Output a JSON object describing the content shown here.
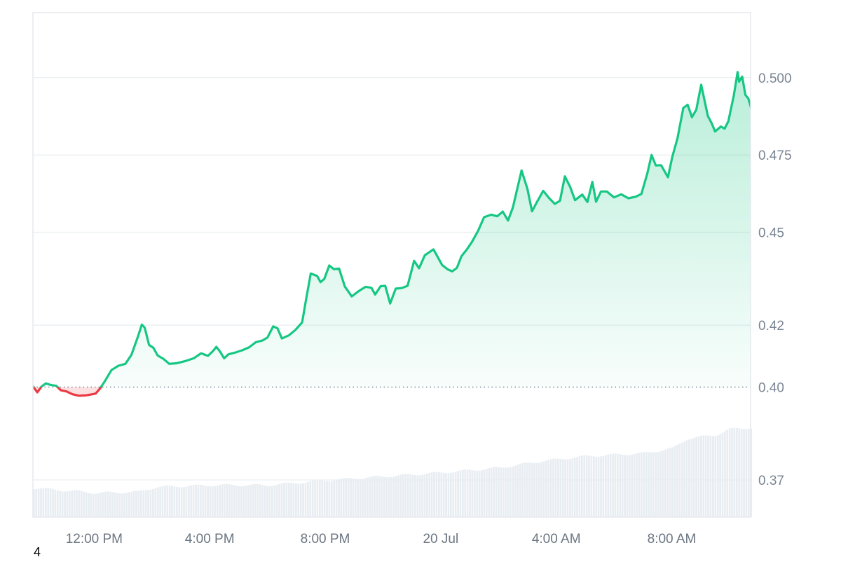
{
  "chart_data": {
    "type": "area",
    "title": "",
    "xlabel": "",
    "ylabel": "",
    "baseline": 0.4,
    "ylim": [
      0.358,
      0.521
    ],
    "y_ticks": [
      0.37,
      0.4,
      0.42,
      0.45,
      0.475,
      0.5
    ],
    "y_tick_labels": [
      "0.37",
      "0.40",
      "0.42",
      "0.45",
      "0.475",
      "0.500"
    ],
    "x_tick_labels": [
      "12:00 PM",
      "4:00 PM",
      "8:00 PM",
      "20 Jul",
      "4:00 AM",
      "8:00 AM"
    ],
    "x_tick_hours": [
      12,
      16,
      20,
      24,
      28,
      32
    ],
    "x_range_hours": [
      9.88,
      34.73
    ],
    "grid": true,
    "legend": "none",
    "colors": {
      "up_line": "#16c784",
      "down_line": "#ea3943",
      "up_fill": "#16c784",
      "down_fill": "#ea3943",
      "volume": "#e8edf2",
      "grid": "#edf0f3",
      "baseline_dots": "#7a8593"
    },
    "price_series": [
      [
        9.88,
        0.4003
      ],
      [
        10.03,
        0.3983
      ],
      [
        10.18,
        0.4002
      ],
      [
        10.33,
        0.4012
      ],
      [
        10.49,
        0.4007
      ],
      [
        10.69,
        0.4004
      ],
      [
        10.84,
        0.399
      ],
      [
        11.04,
        0.3986
      ],
      [
        11.24,
        0.3977
      ],
      [
        11.47,
        0.3972
      ],
      [
        11.69,
        0.3973
      ],
      [
        11.89,
        0.3976
      ],
      [
        12.05,
        0.3979
      ],
      [
        12.2,
        0.3995
      ],
      [
        12.35,
        0.4016
      ],
      [
        12.6,
        0.4055
      ],
      [
        12.84,
        0.4069
      ],
      [
        13.08,
        0.4075
      ],
      [
        13.29,
        0.4104
      ],
      [
        13.5,
        0.4159
      ],
      [
        13.65,
        0.4202
      ],
      [
        13.75,
        0.4192
      ],
      [
        13.9,
        0.4136
      ],
      [
        14.05,
        0.4127
      ],
      [
        14.2,
        0.4102
      ],
      [
        14.4,
        0.4091
      ],
      [
        14.6,
        0.4075
      ],
      [
        14.85,
        0.4077
      ],
      [
        15.15,
        0.4084
      ],
      [
        15.45,
        0.4093
      ],
      [
        15.7,
        0.4109
      ],
      [
        15.94,
        0.4101
      ],
      [
        16.1,
        0.4115
      ],
      [
        16.23,
        0.413
      ],
      [
        16.35,
        0.4116
      ],
      [
        16.5,
        0.4093
      ],
      [
        16.65,
        0.4106
      ],
      [
        16.9,
        0.4112
      ],
      [
        17.13,
        0.4119
      ],
      [
        17.36,
        0.4128
      ],
      [
        17.6,
        0.4145
      ],
      [
        17.84,
        0.4151
      ],
      [
        18.0,
        0.416
      ],
      [
        18.2,
        0.4196
      ],
      [
        18.35,
        0.419
      ],
      [
        18.5,
        0.4157
      ],
      [
        18.74,
        0.4167
      ],
      [
        18.97,
        0.4185
      ],
      [
        19.2,
        0.4209
      ],
      [
        19.34,
        0.4284
      ],
      [
        19.5,
        0.4367
      ],
      [
        19.72,
        0.4359
      ],
      [
        19.84,
        0.4339
      ],
      [
        19.97,
        0.435
      ],
      [
        20.14,
        0.4393
      ],
      [
        20.3,
        0.4381
      ],
      [
        20.48,
        0.4383
      ],
      [
        20.68,
        0.4325
      ],
      [
        20.92,
        0.4293
      ],
      [
        21.16,
        0.431
      ],
      [
        21.4,
        0.4324
      ],
      [
        21.6,
        0.4321
      ],
      [
        21.73,
        0.4299
      ],
      [
        21.92,
        0.4326
      ],
      [
        22.08,
        0.4327
      ],
      [
        22.25,
        0.427
      ],
      [
        22.44,
        0.4318
      ],
      [
        22.65,
        0.432
      ],
      [
        22.85,
        0.4327
      ],
      [
        23.08,
        0.4408
      ],
      [
        23.25,
        0.4384
      ],
      [
        23.45,
        0.4426
      ],
      [
        23.75,
        0.4445
      ],
      [
        24.05,
        0.4394
      ],
      [
        24.25,
        0.438
      ],
      [
        24.4,
        0.4374
      ],
      [
        24.56,
        0.4385
      ],
      [
        24.72,
        0.4423
      ],
      [
        24.9,
        0.4444
      ],
      [
        25.08,
        0.4469
      ],
      [
        25.3,
        0.4506
      ],
      [
        25.5,
        0.4549
      ],
      [
        25.75,
        0.4557
      ],
      [
        25.96,
        0.4552
      ],
      [
        26.15,
        0.4567
      ],
      [
        26.33,
        0.4538
      ],
      [
        26.5,
        0.4581
      ],
      [
        26.8,
        0.47
      ],
      [
        27.0,
        0.4641
      ],
      [
        27.16,
        0.4568
      ],
      [
        27.35,
        0.4601
      ],
      [
        27.55,
        0.4634
      ],
      [
        27.75,
        0.4611
      ],
      [
        27.95,
        0.4592
      ],
      [
        28.13,
        0.4602
      ],
      [
        28.3,
        0.4681
      ],
      [
        28.48,
        0.4647
      ],
      [
        28.65,
        0.4604
      ],
      [
        28.9,
        0.4622
      ],
      [
        29.08,
        0.4598
      ],
      [
        29.25,
        0.4663
      ],
      [
        29.38,
        0.4599
      ],
      [
        29.55,
        0.4632
      ],
      [
        29.75,
        0.4632
      ],
      [
        30.0,
        0.4613
      ],
      [
        30.25,
        0.4623
      ],
      [
        30.5,
        0.461
      ],
      [
        30.75,
        0.4615
      ],
      [
        30.95,
        0.4624
      ],
      [
        31.15,
        0.4689
      ],
      [
        31.3,
        0.475
      ],
      [
        31.45,
        0.4716
      ],
      [
        31.63,
        0.4717
      ],
      [
        31.87,
        0.4678
      ],
      [
        32.02,
        0.4744
      ],
      [
        32.2,
        0.4804
      ],
      [
        32.4,
        0.4902
      ],
      [
        32.55,
        0.4912
      ],
      [
        32.7,
        0.4872
      ],
      [
        32.85,
        0.4896
      ],
      [
        33.02,
        0.4977
      ],
      [
        33.25,
        0.4876
      ],
      [
        33.38,
        0.4853
      ],
      [
        33.5,
        0.4826
      ],
      [
        33.7,
        0.4842
      ],
      [
        33.83,
        0.4835
      ],
      [
        33.96,
        0.4859
      ],
      [
        34.15,
        0.4943
      ],
      [
        34.28,
        0.5018
      ],
      [
        34.33,
        0.4987
      ],
      [
        34.44,
        0.5003
      ],
      [
        34.55,
        0.4944
      ],
      [
        34.65,
        0.4933
      ],
      [
        34.73,
        0.4908
      ],
      [
        34.85,
        0.4863
      ],
      [
        34.99,
        0.4895
      ],
      [
        35.11,
        0.4868
      ],
      [
        35.28,
        0.4866
      ],
      [
        35.41,
        0.4873
      ],
      [
        35.54,
        0.4877
      ],
      [
        35.69,
        0.4884
      ],
      [
        35.81,
        0.4905
      ]
    ],
    "volume_relative": [
      [
        9.88,
        0.3
      ],
      [
        12.05,
        0.25
      ],
      [
        13.5,
        0.26
      ],
      [
        14.1,
        0.31
      ],
      [
        16.0,
        0.33
      ],
      [
        18.0,
        0.33
      ],
      [
        20.0,
        0.38
      ],
      [
        22.0,
        0.42
      ],
      [
        24.0,
        0.46
      ],
      [
        26.0,
        0.51
      ],
      [
        27.5,
        0.58
      ],
      [
        29.0,
        0.63
      ],
      [
        31.0,
        0.66
      ],
      [
        32.0,
        0.71
      ],
      [
        32.5,
        0.81
      ],
      [
        33.5,
        0.85
      ],
      [
        34.0,
        0.91
      ],
      [
        35.81,
        0.95
      ]
    ]
  },
  "footnote": "4"
}
